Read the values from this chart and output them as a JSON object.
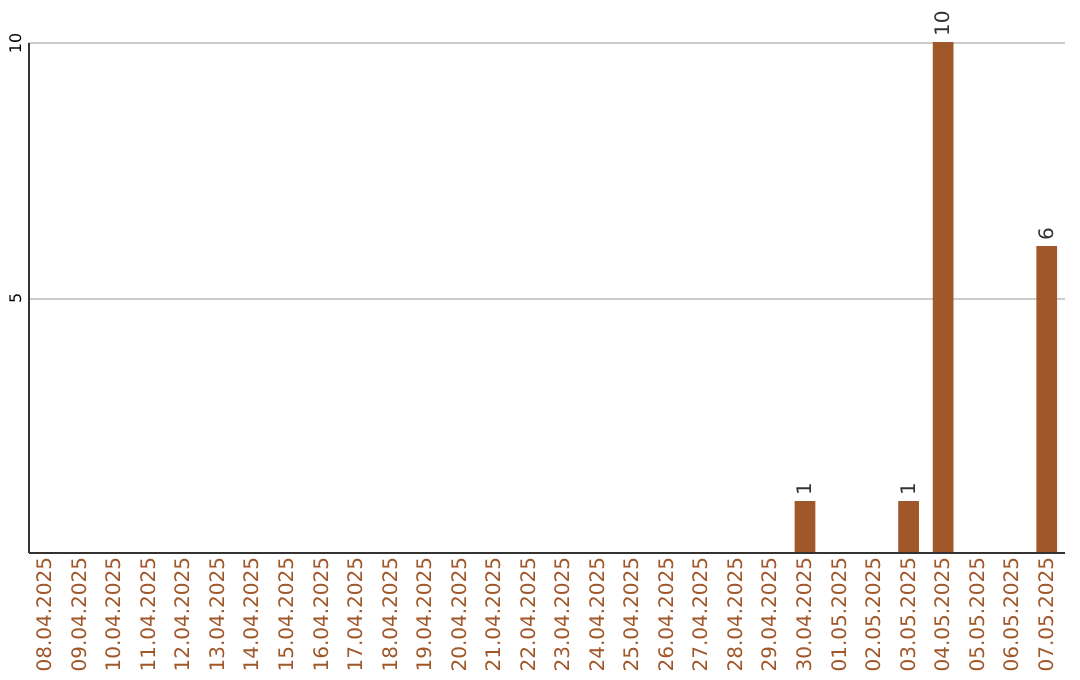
{
  "chart_data": {
    "type": "bar",
    "categories": [
      "08.04.2025",
      "09.04.2025",
      "10.04.2025",
      "11.04.2025",
      "12.04.2025",
      "13.04.2025",
      "14.04.2025",
      "15.04.2025",
      "16.04.2025",
      "17.04.2025",
      "18.04.2025",
      "19.04.2025",
      "20.04.2025",
      "21.04.2025",
      "22.04.2025",
      "23.04.2025",
      "24.04.2025",
      "25.04.2025",
      "26.04.2025",
      "27.04.2025",
      "28.04.2025",
      "29.04.2025",
      "30.04.2025",
      "01.05.2025",
      "02.05.2025",
      "03.05.2025",
      "04.05.2025",
      "05.05.2025",
      "06.05.2025",
      "07.05.2025"
    ],
    "values": [
      null,
      null,
      null,
      null,
      null,
      null,
      null,
      null,
      null,
      null,
      null,
      null,
      null,
      null,
      null,
      null,
      null,
      null,
      null,
      null,
      null,
      null,
      1,
      null,
      null,
      1,
      10,
      null,
      null,
      6
    ],
    "color": "#a0572a",
    "ylim": [
      0,
      10
    ],
    "yticks": [
      5,
      10
    ],
    "grid": "y",
    "data_labels": true
  }
}
